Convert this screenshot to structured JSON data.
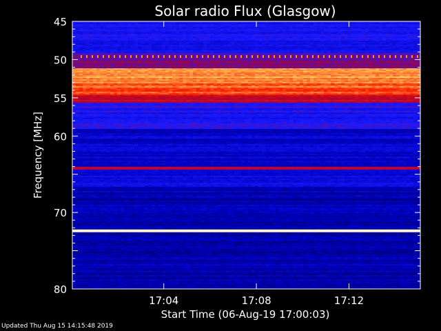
{
  "chart_data": {
    "type": "heatmap",
    "title": "Solar radio Flux (Glasgow)",
    "xlabel": "Start Time (06-Aug-19 17:00:03)",
    "ylabel": "Frequency [MHz]",
    "y_reversed": true,
    "ylim": [
      45,
      80
    ],
    "xlim": [
      "17:00:03",
      "17:15:05"
    ],
    "y_ticks": [
      45,
      50,
      55,
      60,
      65,
      70,
      75,
      80
    ],
    "y_tick_labels": [
      "45",
      "50",
      "55",
      "60",
      "",
      "70",
      "",
      "80"
    ],
    "x_ticks": [
      "17:04",
      "17:08",
      "17:12"
    ],
    "colormap": [
      "#000040",
      "#0000c0",
      "#1a1aff",
      "#b00030",
      "#ff2000",
      "#ffd060",
      "#ffffe0"
    ],
    "bands": [
      {
        "from": 45.0,
        "to": 49.0,
        "level": 0.3
      },
      {
        "from": 49.0,
        "to": 50.0,
        "level": 0.4
      },
      {
        "from": 50.0,
        "to": 51.0,
        "level": 0.45
      },
      {
        "from": 51.0,
        "to": 53.0,
        "level": 0.78
      },
      {
        "from": 53.0,
        "to": 54.5,
        "level": 0.72
      },
      {
        "from": 54.5,
        "to": 55.5,
        "level": 0.55
      },
      {
        "from": 55.5,
        "to": 59.0,
        "level": 0.32
      },
      {
        "from": 59.0,
        "to": 63.5,
        "level": 0.2
      },
      {
        "from": 63.5,
        "to": 64.5,
        "level": 0.18
      },
      {
        "from": 64.5,
        "to": 66.5,
        "level": 0.25
      },
      {
        "from": 66.5,
        "to": 72.0,
        "level": 0.15
      },
      {
        "from": 72.0,
        "to": 75.0,
        "level": 0.12
      },
      {
        "from": 75.0,
        "to": 80.0,
        "level": 0.15
      }
    ],
    "lines": [
      {
        "freq": 64.2,
        "color": "#c80030"
      },
      {
        "freq": 72.4,
        "color": "#fff8c0"
      }
    ],
    "dotted_line": {
      "freq": 49.6,
      "color": "#ff9020"
    }
  },
  "footer": "Updated Thu Aug 15 14:15:48 2019"
}
